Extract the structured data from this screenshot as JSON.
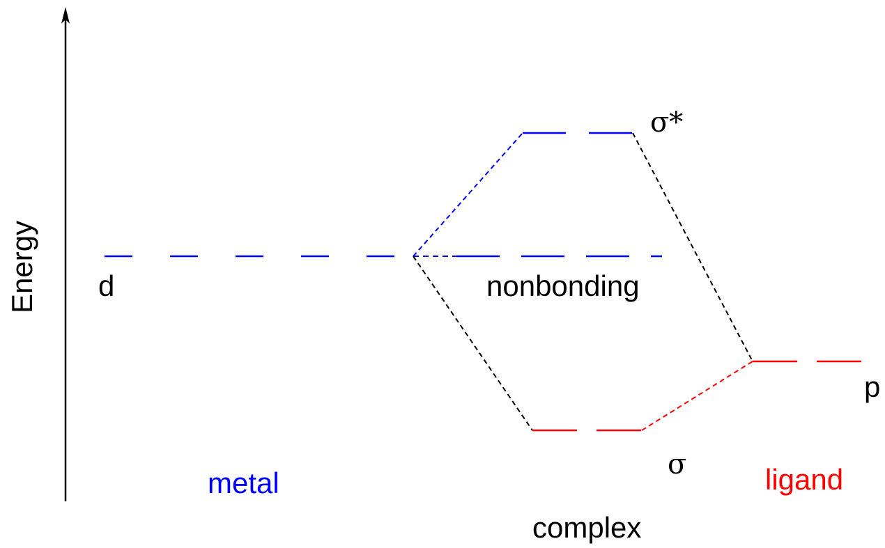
{
  "axis": {
    "label": "Energy"
  },
  "levels": {
    "metal_d": "d",
    "nonbonding": "nonbonding",
    "sigma_star": "σ*",
    "sigma": "σ",
    "ligand_p": "p"
  },
  "columns": {
    "metal": "metal",
    "complex": "complex",
    "ligand": "ligand"
  },
  "colors": {
    "metal": "#0000ff",
    "ligand": "#ff0000",
    "connector": "#000000",
    "axis": "#000000"
  }
}
